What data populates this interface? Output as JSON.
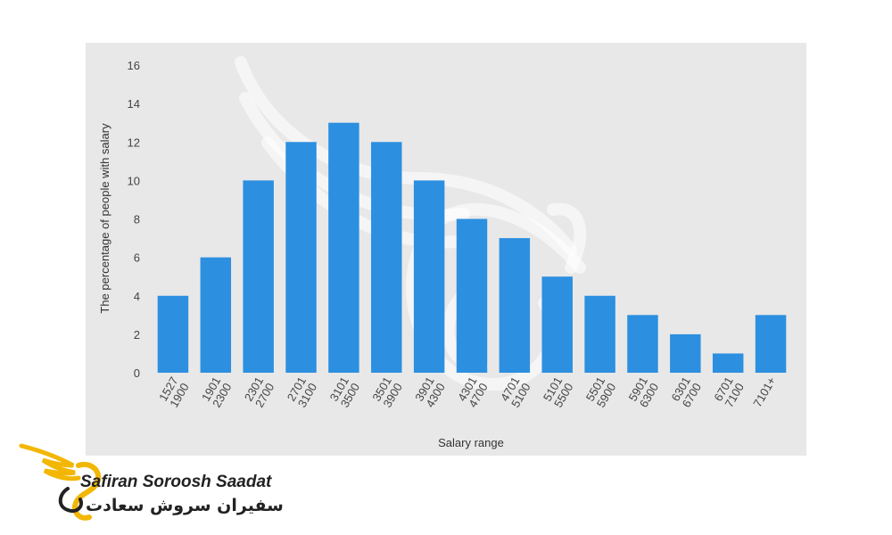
{
  "chart_data": {
    "type": "bar",
    "categories": [
      [
        "1527",
        "1900"
      ],
      [
        "1901",
        "2300"
      ],
      [
        "2301",
        "2700"
      ],
      [
        "2701",
        "3100"
      ],
      [
        "3101",
        "3500"
      ],
      [
        "3501",
        "3900"
      ],
      [
        "3901",
        "4300"
      ],
      [
        "4301",
        "4700"
      ],
      [
        "4701",
        "5100"
      ],
      [
        "5101",
        "5500"
      ],
      [
        "5501",
        "5900"
      ],
      [
        "5901",
        "6300"
      ],
      [
        "6301",
        "6700"
      ],
      [
        "6701",
        "7100"
      ],
      [
        "7101+",
        ""
      ]
    ],
    "values": [
      4,
      6,
      10,
      12,
      13,
      12,
      10,
      8,
      7,
      5,
      4,
      3,
      2,
      1,
      3
    ],
    "xlabel": "Salary range",
    "ylabel": "The percentage of people with salary",
    "ylim": [
      0,
      16
    ],
    "yticks": [
      0,
      2,
      4,
      6,
      8,
      10,
      12,
      14,
      16
    ],
    "grid": false,
    "bar_color": "#2c8fe0"
  },
  "branding": {
    "name_en": "Safiran Soroosh Saadat",
    "name_fa": "سفیران سروش سعادت",
    "logo_colors": [
      "#f2b705",
      "#e8a400",
      "#222222"
    ]
  },
  "colors": {
    "panel_background": "#e8e8e8",
    "bar": "#2c8fe0",
    "watermark": "#ffffff"
  }
}
